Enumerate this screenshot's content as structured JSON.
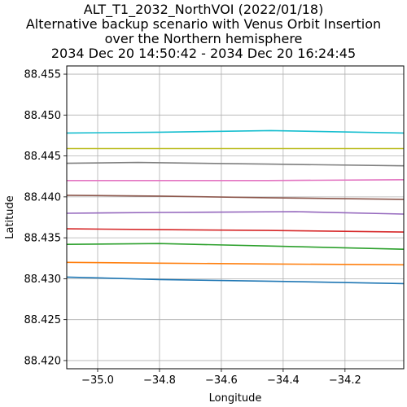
{
  "chart_data": {
    "type": "line",
    "title_lines": [
      "ALT_T1_2032_NorthVOI (2022/01/18)",
      "Alternative backup scenario with Venus Orbit Insertion",
      "over the Northern hemisphere",
      "2034 Dec 20 14:50:42 - 2034 Dec 20 16:24:45"
    ],
    "xlabel": "Longitude",
    "ylabel": "Latitude",
    "xlim": [
      -35.1,
      -34.01
    ],
    "ylim": [
      88.419,
      88.456
    ],
    "xticks": [
      -35.0,
      -34.8,
      -34.6,
      -34.4,
      -34.2
    ],
    "xtick_labels": [
      "−35.0",
      "−34.8",
      "−34.6",
      "−34.4",
      "−34.2"
    ],
    "yticks": [
      88.42,
      88.425,
      88.43,
      88.435,
      88.44,
      88.445,
      88.45,
      88.455
    ],
    "ytick_labels": [
      "88.420",
      "88.425",
      "88.430",
      "88.435",
      "88.440",
      "88.445",
      "88.450",
      "88.455"
    ],
    "grid": true,
    "series": [
      {
        "color": "#1f77b4",
        "x": [
          -35.1,
          -34.8,
          -34.45,
          -34.01
        ],
        "y": [
          88.4302,
          88.4299,
          88.4297,
          88.4294
        ]
      },
      {
        "color": "#ff7f0e",
        "x": [
          -35.1,
          -34.8,
          -34.45,
          -34.01
        ],
        "y": [
          88.432,
          88.4319,
          88.4318,
          88.4317
        ]
      },
      {
        "color": "#2ca02c",
        "x": [
          -35.1,
          -34.8,
          -34.45,
          -34.01
        ],
        "y": [
          88.4342,
          88.4343,
          88.434,
          88.4336
        ]
      },
      {
        "color": "#d62728",
        "x": [
          -35.1,
          -34.8,
          -34.45,
          -34.01
        ],
        "y": [
          88.4361,
          88.436,
          88.4359,
          88.4357
        ]
      },
      {
        "color": "#9467bd",
        "x": [
          -35.1,
          -34.8,
          -34.36,
          -34.01
        ],
        "y": [
          88.438,
          88.4381,
          88.4382,
          88.4379
        ]
      },
      {
        "color": "#8c564b",
        "x": [
          -35.1,
          -34.8,
          -34.45,
          -34.01
        ],
        "y": [
          88.4402,
          88.4401,
          88.4399,
          88.4397
        ]
      },
      {
        "color": "#7f7f7f",
        "x": [
          -35.1,
          -34.87,
          -34.45,
          -34.01
        ],
        "y": [
          88.4441,
          88.4442,
          88.444,
          88.4438
        ]
      },
      {
        "color": "#e377c2",
        "x": [
          -35.1,
          -34.8,
          -34.45,
          -34.01
        ],
        "y": [
          88.442,
          88.442,
          88.442,
          88.4421
        ]
      },
      {
        "color": "#bcbd22",
        "x": [
          -35.1,
          -34.8,
          -34.45,
          -34.01
        ],
        "y": [
          88.4459,
          88.4459,
          88.4459,
          88.4459
        ]
      },
      {
        "color": "#17becf",
        "x": [
          -35.1,
          -34.8,
          -34.44,
          -34.01
        ],
        "y": [
          88.4478,
          88.4479,
          88.4481,
          88.4478
        ]
      }
    ]
  }
}
